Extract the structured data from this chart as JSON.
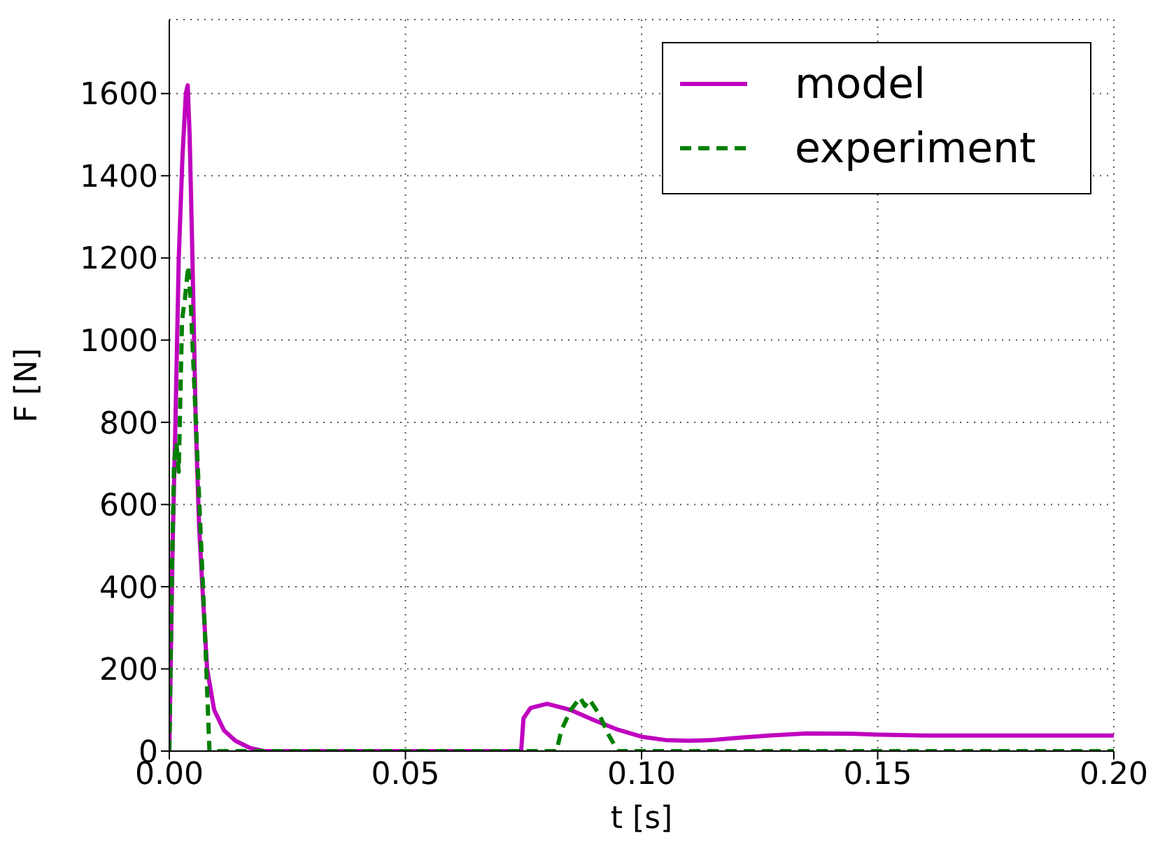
{
  "chart_data": {
    "type": "line",
    "xlabel": "t [s]",
    "ylabel": "F [N]",
    "xlim": [
      0,
      0.2
    ],
    "xticks": [
      {
        "value": 0,
        "label": "0.00"
      },
      {
        "value": 0.05,
        "label": "0.05"
      },
      {
        "value": 0.1,
        "label": "0.10"
      },
      {
        "value": 0.15,
        "label": "0.15"
      },
      {
        "value": 0.2,
        "label": "0.20"
      }
    ],
    "ylim": [
      0,
      1780
    ],
    "yticks": [
      0,
      200,
      400,
      600,
      800,
      1000,
      1200,
      1400,
      1600
    ],
    "grid": true,
    "legend": "top right",
    "series": [
      {
        "name": "model",
        "color": "#bf00bf",
        "line_style": "solid",
        "x": [
          0,
          0.0007,
          0.0013,
          0.002,
          0.0028,
          0.0035,
          0.0039,
          0.0043,
          0.0049,
          0.0056,
          0.0063,
          0.007,
          0.008,
          0.0095,
          0.0116,
          0.014,
          0.017,
          0.02,
          0.05,
          0.0745,
          0.075,
          0.0765,
          0.08,
          0.085,
          0.09,
          0.095,
          0.1,
          0.105,
          0.11,
          0.115,
          0.12,
          0.127,
          0.135,
          0.145,
          0.15,
          0.16,
          0.175,
          0.2
        ],
        "values": [
          0,
          500,
          800,
          1200,
          1450,
          1600,
          1620,
          1500,
          1200,
          800,
          550,
          400,
          200,
          100,
          50,
          25,
          8,
          0,
          0,
          0,
          80,
          105,
          115,
          100,
          75,
          52,
          35,
          27,
          25,
          27,
          32,
          38,
          43,
          42,
          40,
          38,
          38,
          38
        ]
      },
      {
        "name": "experiment",
        "color": "#008000",
        "line_style": "dashed",
        "x": [
          0,
          0.0005,
          0.001,
          0.0015,
          0.002,
          0.0027,
          0.0033,
          0.004,
          0.0045,
          0.006,
          0.0075,
          0.0085,
          0.05,
          0.082,
          0.083,
          0.085,
          0.087,
          0.088,
          0.089,
          0.091,
          0.093,
          0.095,
          0.2
        ],
        "values": [
          0,
          400,
          700,
          750,
          680,
          1050,
          1100,
          1180,
          1100,
          700,
          300,
          0,
          0,
          0,
          50,
          100,
          130,
          110,
          125,
          90,
          40,
          0,
          0
        ]
      }
    ]
  }
}
